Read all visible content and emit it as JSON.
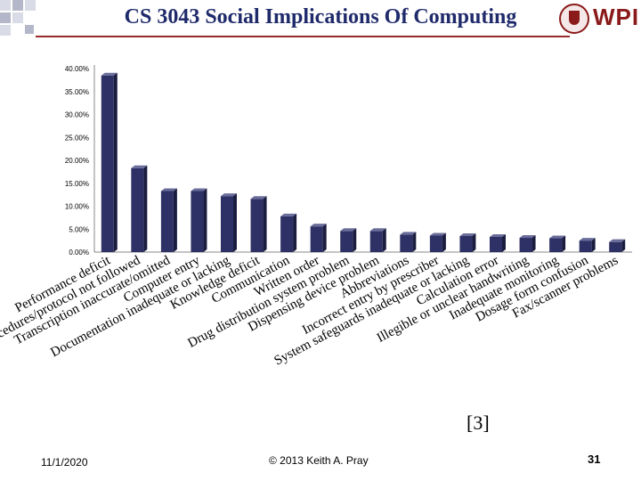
{
  "slide": {
    "title": "CS 3043 Social Implications Of Computing",
    "logo_text": "WPI",
    "citation": "[3]",
    "footer_date": "11/1/2020",
    "footer_copyright": "© 2013 Keith A. Pray",
    "slide_number": "31"
  },
  "colors": {
    "title": "#1f2a6b",
    "bar_front": "#2e3165",
    "bar_top": "#6a6d9a",
    "bar_side": "#1b1d3f",
    "accent": "#8b1a1a"
  },
  "chart_data": {
    "type": "bar",
    "title": "",
    "xlabel": "",
    "ylabel": "",
    "ylim": [
      0,
      40
    ],
    "yticks": [
      "0.00%",
      "5.00%",
      "10.00%",
      "15.00%",
      "20.00%",
      "25.00%",
      "30.00%",
      "35.00%",
      "40.00%"
    ],
    "categories": [
      "Performance deficit",
      "Procedures/protocol not followed",
      "Transcription inaccurate/omitted",
      "Computer entry",
      "Documentation inadequate or lacking",
      "Knowledge deficit",
      "Communication",
      "Written order",
      "Drug distribution system problem",
      "Dispensing device problem",
      "Abbreviations",
      "Incorrect entry by prescriber",
      "System safeguards inadequate or lacking",
      "Calculation error",
      "Illegible or unclear handwriting",
      "Inadequate monitoring",
      "Dosage form confusion",
      "Fax/scanner problems"
    ],
    "values": [
      38.5,
      18.3,
      13.3,
      13.3,
      12.2,
      11.6,
      7.8,
      5.6,
      4.6,
      4.6,
      3.8,
      3.6,
      3.5,
      3.3,
      3.1,
      3.0,
      2.5,
      2.2
    ]
  }
}
